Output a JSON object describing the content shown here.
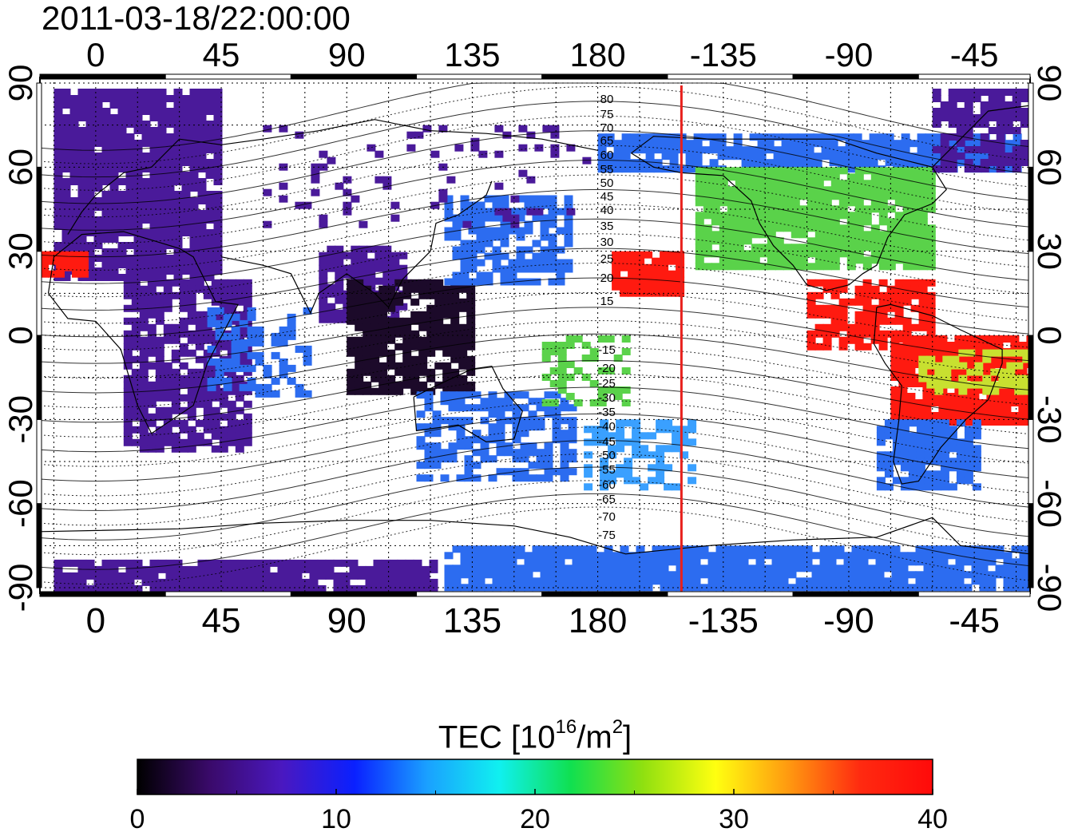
{
  "title": "2011-03-18/22:00:00",
  "map": {
    "lon_ticks_top": [
      "0",
      "45",
      "90",
      "135",
      "180",
      "-135",
      "-90",
      "-45"
    ],
    "lon_ticks_bottom": [
      "0",
      "45",
      "90",
      "135",
      "180",
      "-135",
      "-90",
      "-45"
    ],
    "lat_ticks": [
      "90",
      "60",
      "30",
      "0",
      "-30",
      "-60",
      "-90"
    ],
    "lon_range": [
      -20,
      335
    ],
    "lat_range": [
      -92,
      92
    ],
    "grid": "dotted, 15° spacing",
    "terminator_line": {
      "longitude_label": "-150",
      "longitude_unwrapped": 210,
      "color": "#e8201c"
    },
    "magnetic_latitude_labels": [
      "80",
      "75",
      "70",
      "65",
      "60",
      "55",
      "50",
      "45",
      "40",
      "35",
      "30",
      "25",
      "20",
      "15",
      "-15",
      "-20",
      "-25",
      "-30",
      "-35",
      "-40",
      "-45",
      "-50",
      "-55",
      "-60",
      "-65",
      "-70",
      "-75"
    ],
    "tec_field_colors": {
      "low": "#4a1a9a",
      "mid": "#2c6cf0",
      "green": "#5ad24a",
      "high": "#ff1a10"
    }
  },
  "colorbar": {
    "label_main": "TEC  [10",
    "label_sup": "16",
    "label_mid": "/m",
    "label_sup2": "2",
    "label_end": "]",
    "ticks": [
      "0",
      "10",
      "20",
      "30",
      "40"
    ],
    "range": [
      0,
      40
    ],
    "stops": [
      "#000000",
      "#3a0a6a",
      "#4a18c0",
      "#0a20ff",
      "#1aa0ff",
      "#10f0f0",
      "#10e050",
      "#90e010",
      "#ffff10",
      "#ff9a10",
      "#ff2a10",
      "#ff0a0a"
    ]
  }
}
